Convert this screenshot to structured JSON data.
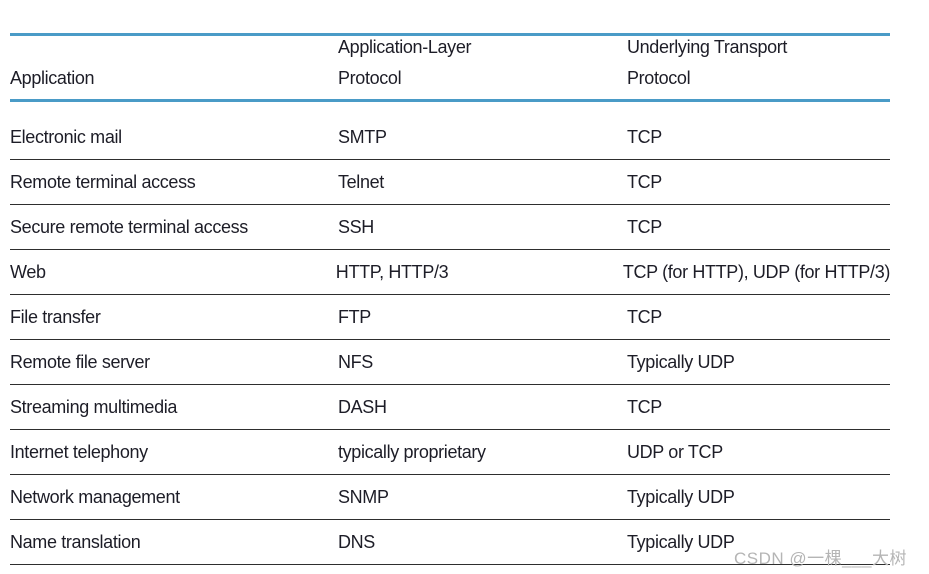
{
  "table": {
    "headers": {
      "application": {
        "line1": "",
        "line2": "Application"
      },
      "app_layer": {
        "line1": "Application-Layer",
        "line2": "Protocol"
      },
      "transport": {
        "line1": "Underlying Transport",
        "line2": "Protocol"
      }
    },
    "rows": [
      {
        "application": "Electronic mail",
        "app_protocol": "SMTP",
        "transport": "TCP"
      },
      {
        "application": "Remote terminal access",
        "app_protocol": "Telnet",
        "transport": "TCP"
      },
      {
        "application": "Secure remote terminal access",
        "app_protocol": "SSH",
        "transport": "TCP"
      },
      {
        "application": "Web",
        "app_protocol": "HTTP, HTTP/3",
        "transport": "TCP (for HTTP), UDP (for HTTP/3)"
      },
      {
        "application": "File transfer",
        "app_protocol": "FTP",
        "transport": "TCP"
      },
      {
        "application": "Remote file server",
        "app_protocol": "NFS",
        "transport": "Typically UDP"
      },
      {
        "application": "Streaming multimedia",
        "app_protocol": "DASH",
        "transport": "TCP"
      },
      {
        "application": "Internet telephony",
        "app_protocol": "typically proprietary",
        "transport": "UDP or TCP"
      },
      {
        "application": "Network management",
        "app_protocol": "SNMP",
        "transport": "Typically UDP"
      },
      {
        "application": "Name translation",
        "app_protocol": "DNS",
        "transport": "Typically UDP"
      }
    ]
  },
  "watermark": {
    "text": "CSDN @一棵___大树"
  },
  "colors": {
    "header_rule": "#4a9bc7",
    "row_rule": "#2e2e2e",
    "text": "#1d1d27",
    "watermark": "#b5b5b5",
    "background": "#ffffff"
  }
}
